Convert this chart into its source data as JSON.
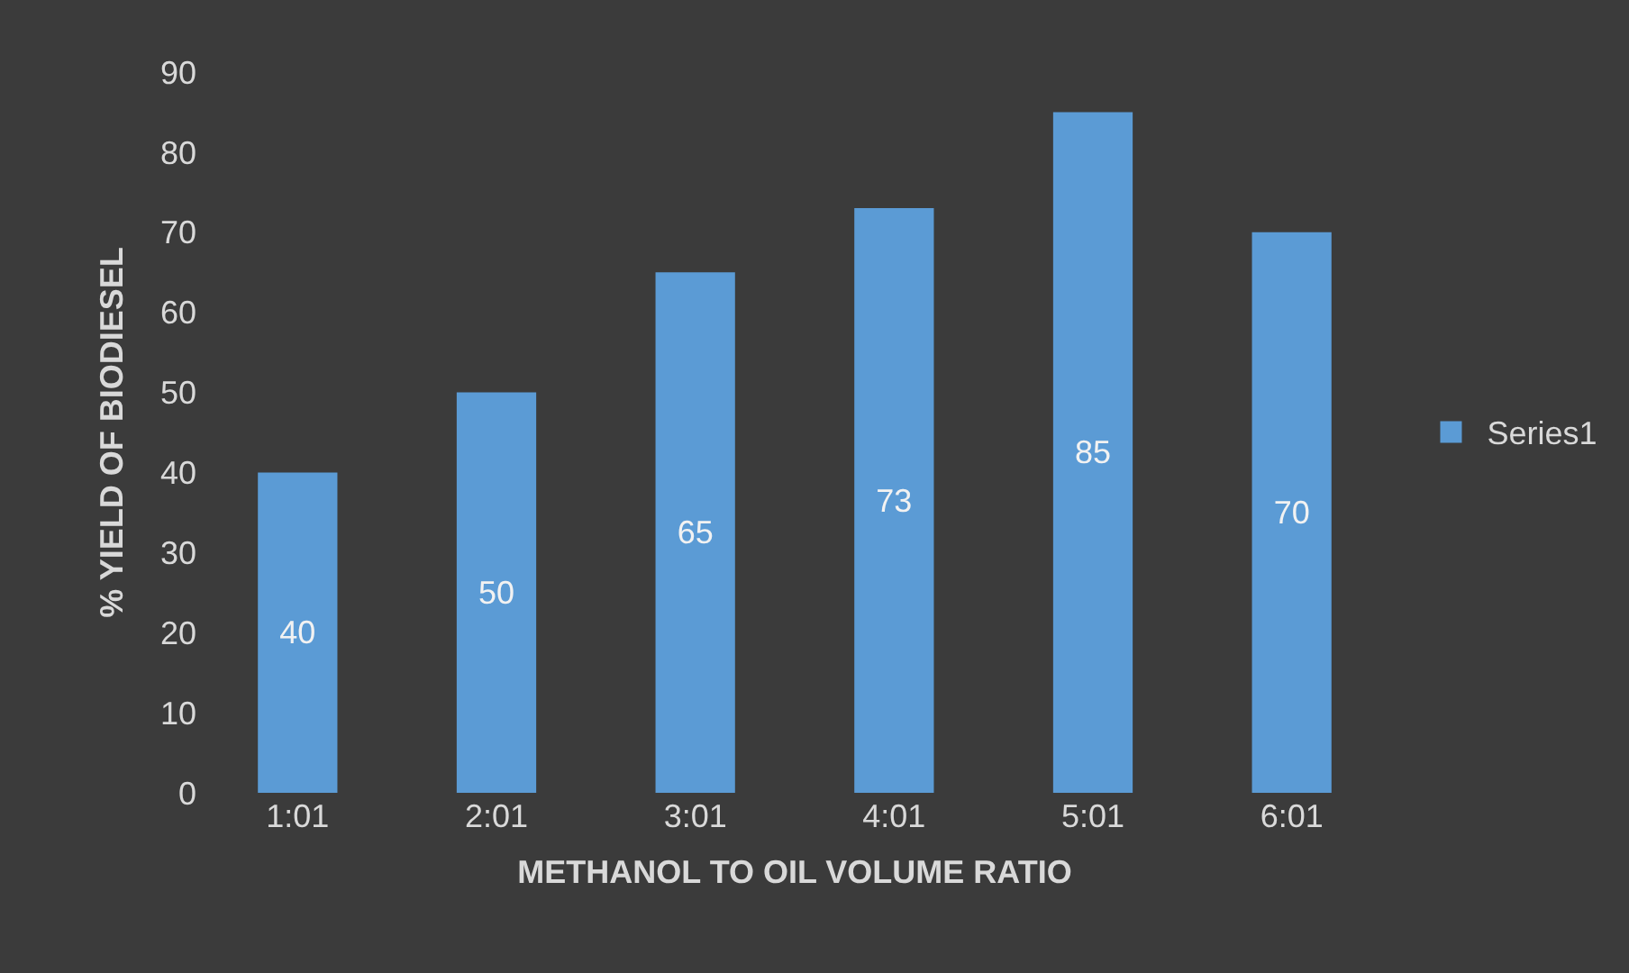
{
  "chart_data": {
    "type": "bar",
    "xlabel": "METHANOL TO OIL VOLUME RATIO",
    "ylabel": "% YIELD OF BIODIESEL",
    "categories": [
      "1:01",
      "2:01",
      "3:01",
      "4:01",
      "5:01",
      "6:01"
    ],
    "series": [
      {
        "name": "Series1",
        "color": "#5b9bd5",
        "values": [
          40,
          50,
          65,
          73,
          85,
          70
        ]
      }
    ],
    "ylim": [
      0,
      90
    ],
    "yticks": [
      0,
      10,
      20,
      30,
      40,
      50,
      60,
      70,
      80,
      90
    ],
    "data_labels": true,
    "legend": "right",
    "grid": false
  }
}
